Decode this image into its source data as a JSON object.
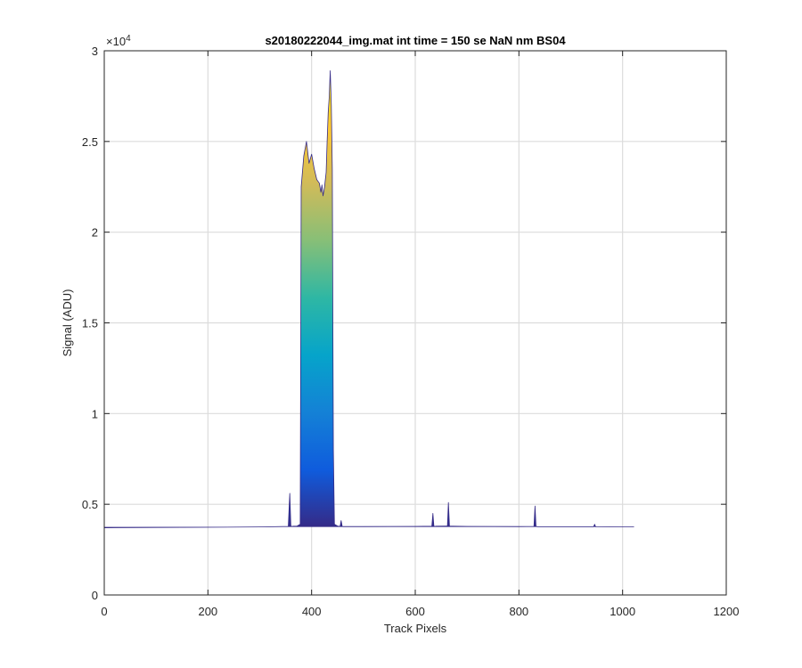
{
  "chart_data": {
    "type": "area",
    "title": "s20180222044_img.mat int time = 150 se  NaN nm BS04",
    "xlabel": "Track Pixels",
    "ylabel": "Signal (ADU)",
    "xlim": [
      0,
      1200
    ],
    "ylim": [
      0,
      30000
    ],
    "x_ticks": [
      0,
      200,
      400,
      600,
      800,
      1000,
      1200
    ],
    "x_tick_labels": [
      "0",
      "200",
      "400",
      "600",
      "800",
      "1000",
      "1200"
    ],
    "y_ticks": [
      0,
      5000,
      10000,
      15000,
      20000,
      25000,
      30000
    ],
    "y_tick_labels": [
      "0",
      "0.5",
      "1",
      "1.5",
      "2",
      "2.5",
      "3"
    ],
    "y_exponent_label": "×10",
    "y_exponent_power": "4",
    "grid": true,
    "colormap": "parula",
    "colormap_stops": [
      "#352a87",
      "#0f5cdd",
      "#1481d6",
      "#06a4ca",
      "#2eb7a4",
      "#87bf77",
      "#d1bb59",
      "#fec832",
      "#f9fb0e"
    ],
    "baseline": 3750,
    "series": [
      {
        "x": [
          0,
          100,
          200,
          300,
          355,
          358,
          360,
          362,
          365,
          372,
          378,
          380,
          385,
          390,
          395,
          400,
          405,
          410,
          415,
          418,
          420,
          422,
          425,
          428,
          430,
          432,
          434,
          436,
          438,
          440,
          442,
          444,
          450,
          455,
          457,
          459,
          461,
          500,
          600,
          632,
          634,
          636,
          638,
          640,
          660,
          662,
          664,
          666,
          668,
          700,
          800,
          829,
          831,
          833,
          835,
          837,
          900,
          944,
          946,
          948,
          1000,
          1022
        ],
        "y": [
          3700,
          3720,
          3730,
          3750,
          3780,
          5600,
          3800,
          3780,
          3790,
          3800,
          3900,
          22500,
          24200,
          25000,
          23800,
          24300,
          23500,
          22900,
          22700,
          22200,
          22600,
          22000,
          22500,
          23300,
          25000,
          26600,
          27400,
          28900,
          27000,
          23500,
          8000,
          3900,
          3800,
          3780,
          4100,
          3780,
          3770,
          3770,
          3780,
          3790,
          4500,
          3790,
          3780,
          3790,
          3800,
          3800,
          5100,
          3800,
          3790,
          3780,
          3770,
          3780,
          4900,
          3780,
          3770,
          3760,
          3760,
          3760,
          3900,
          3760,
          3750,
          3750
        ]
      }
    ]
  }
}
